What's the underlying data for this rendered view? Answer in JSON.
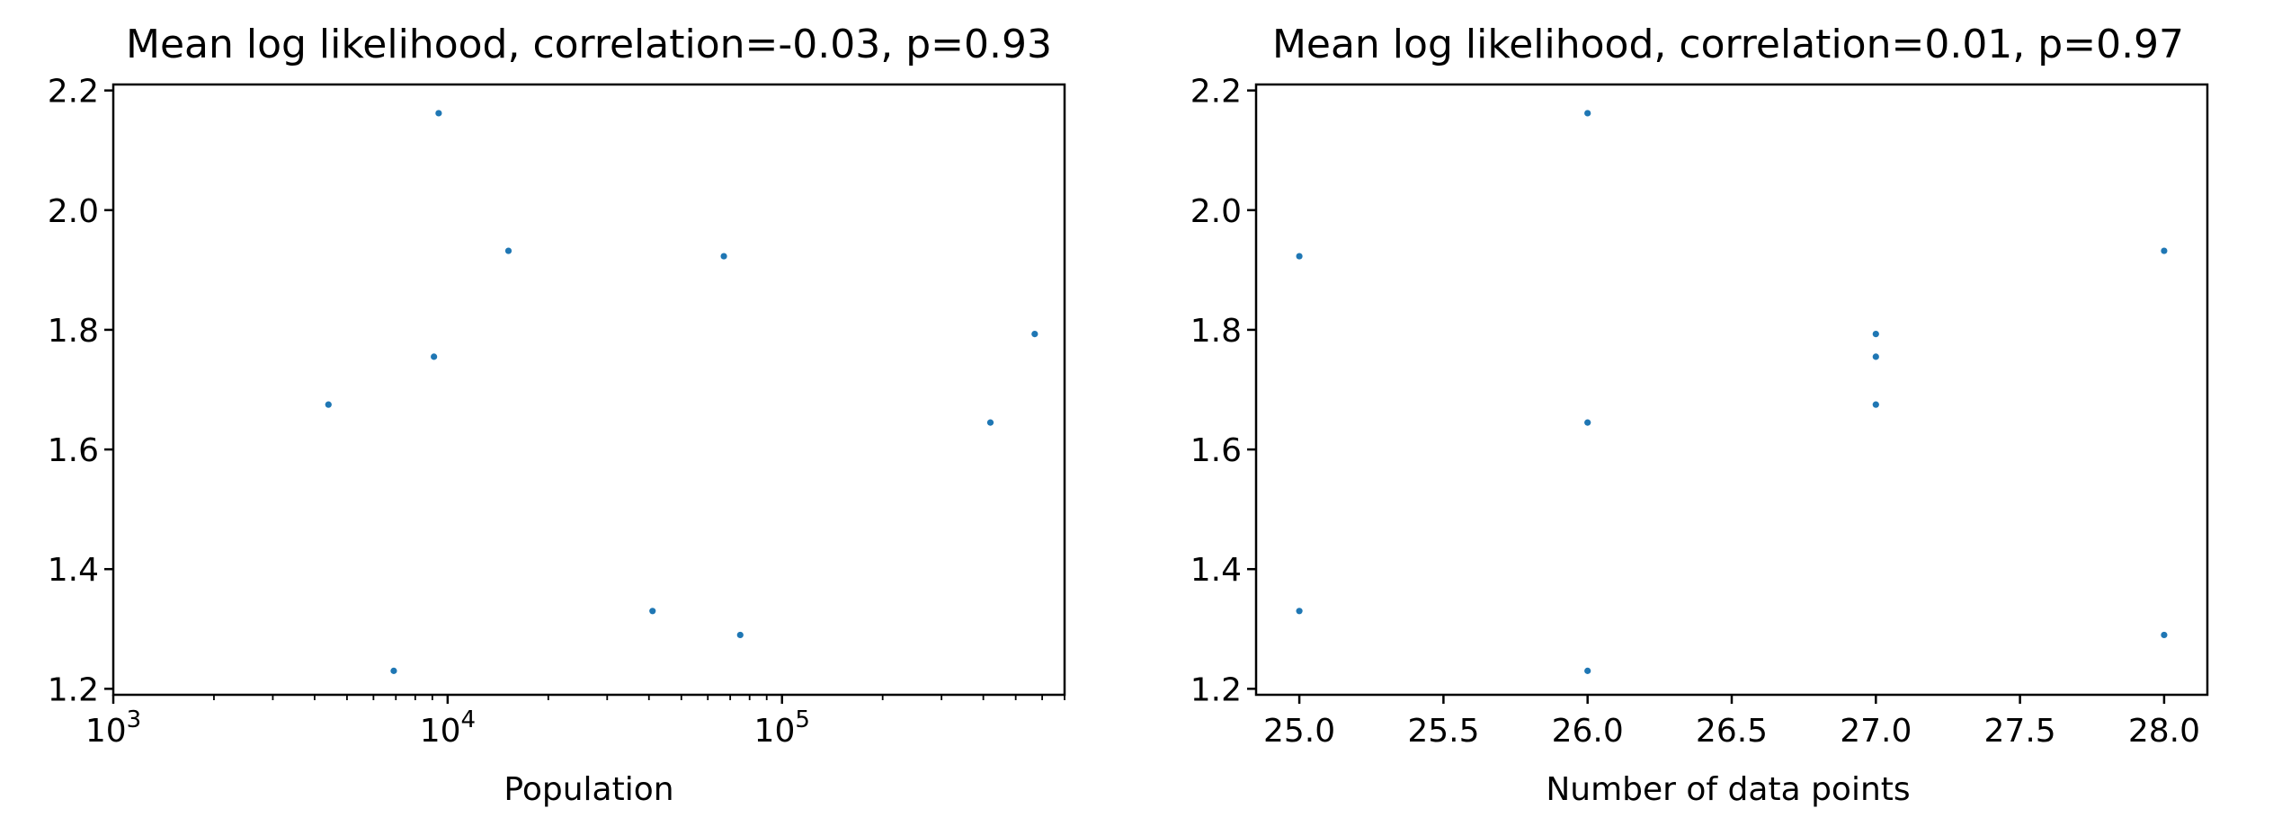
{
  "chart_data": [
    {
      "type": "scatter",
      "title": "Mean log likelihood, correlation=-0.03, p=0.93",
      "xlabel": "Population",
      "ylabel": "",
      "xscale": "log",
      "xlim": [
        1000,
        700000
      ],
      "ylim": [
        1.19,
        2.21
      ],
      "xticks": [
        1000,
        10000,
        100000
      ],
      "xtick_labels": [
        {
          "base": "10",
          "exp": "3"
        },
        {
          "base": "10",
          "exp": "4"
        },
        {
          "base": "10",
          "exp": "5"
        }
      ],
      "yticks": [
        1.2,
        1.4,
        1.6,
        1.8,
        2.0,
        2.2
      ],
      "ytick_labels": [
        "1.2",
        "1.4",
        "1.6",
        "1.8",
        "2.0",
        "2.2"
      ],
      "marker_color": "#1f77b4",
      "grid": false,
      "points": [
        {
          "x": 4400,
          "y": 1.675
        },
        {
          "x": 6900,
          "y": 1.23
        },
        {
          "x": 9100,
          "y": 1.755
        },
        {
          "x": 9400,
          "y": 2.162
        },
        {
          "x": 15200,
          "y": 1.932
        },
        {
          "x": 41000,
          "y": 1.33
        },
        {
          "x": 67000,
          "y": 1.923
        },
        {
          "x": 75000,
          "y": 1.29
        },
        {
          "x": 420000,
          "y": 1.645
        },
        {
          "x": 570000,
          "y": 1.793
        }
      ]
    },
    {
      "type": "scatter",
      "title": "Mean log likelihood, correlation=0.01, p=0.97",
      "xlabel": "Number of data points",
      "ylabel": "",
      "xscale": "linear",
      "xlim": [
        24.85,
        28.15
      ],
      "ylim": [
        1.19,
        2.21
      ],
      "xticks": [
        25.0,
        25.5,
        26.0,
        26.5,
        27.0,
        27.5,
        28.0
      ],
      "xtick_labels": [
        "25.0",
        "25.5",
        "26.0",
        "26.5",
        "27.0",
        "27.5",
        "28.0"
      ],
      "yticks": [
        1.2,
        1.4,
        1.6,
        1.8,
        2.0,
        2.2
      ],
      "ytick_labels": [
        "1.2",
        "1.4",
        "1.6",
        "1.8",
        "2.0",
        "2.2"
      ],
      "marker_color": "#1f77b4",
      "grid": false,
      "points": [
        {
          "x": 25,
          "y": 1.923
        },
        {
          "x": 25,
          "y": 1.33
        },
        {
          "x": 26,
          "y": 2.162
        },
        {
          "x": 26,
          "y": 1.645
        },
        {
          "x": 26,
          "y": 1.23
        },
        {
          "x": 27,
          "y": 1.793
        },
        {
          "x": 27,
          "y": 1.755
        },
        {
          "x": 27,
          "y": 1.675
        },
        {
          "x": 28,
          "y": 1.932
        },
        {
          "x": 28,
          "y": 1.29
        }
      ]
    }
  ]
}
